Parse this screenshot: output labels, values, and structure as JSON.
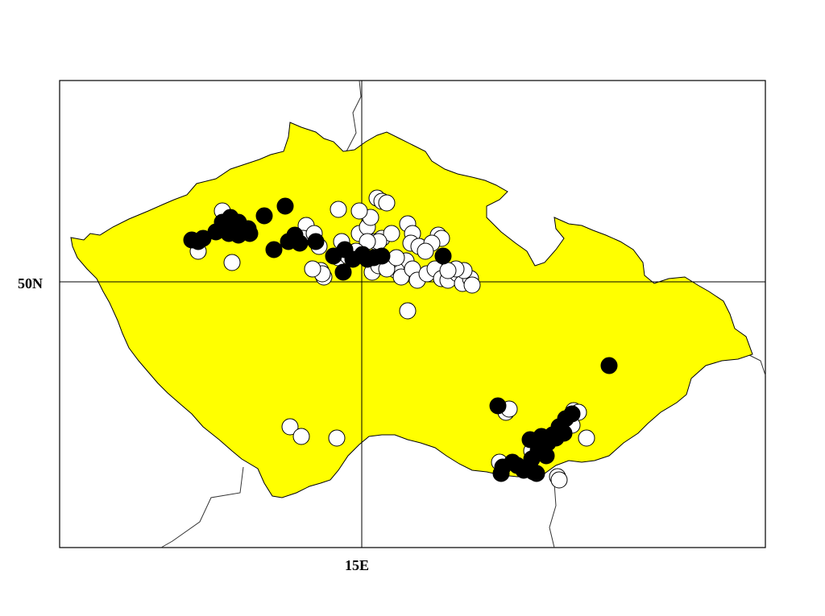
{
  "map": {
    "labels": {
      "lat": "50N",
      "lon": "15E"
    },
    "colors": {
      "land": "#ffff00",
      "border": "#000000",
      "background": "#ffffff",
      "dot_black": "#000000",
      "dot_white": "#ffffff"
    },
    "legend": "none",
    "points": {
      "black_count": 50,
      "white_count": 71
    }
  }
}
